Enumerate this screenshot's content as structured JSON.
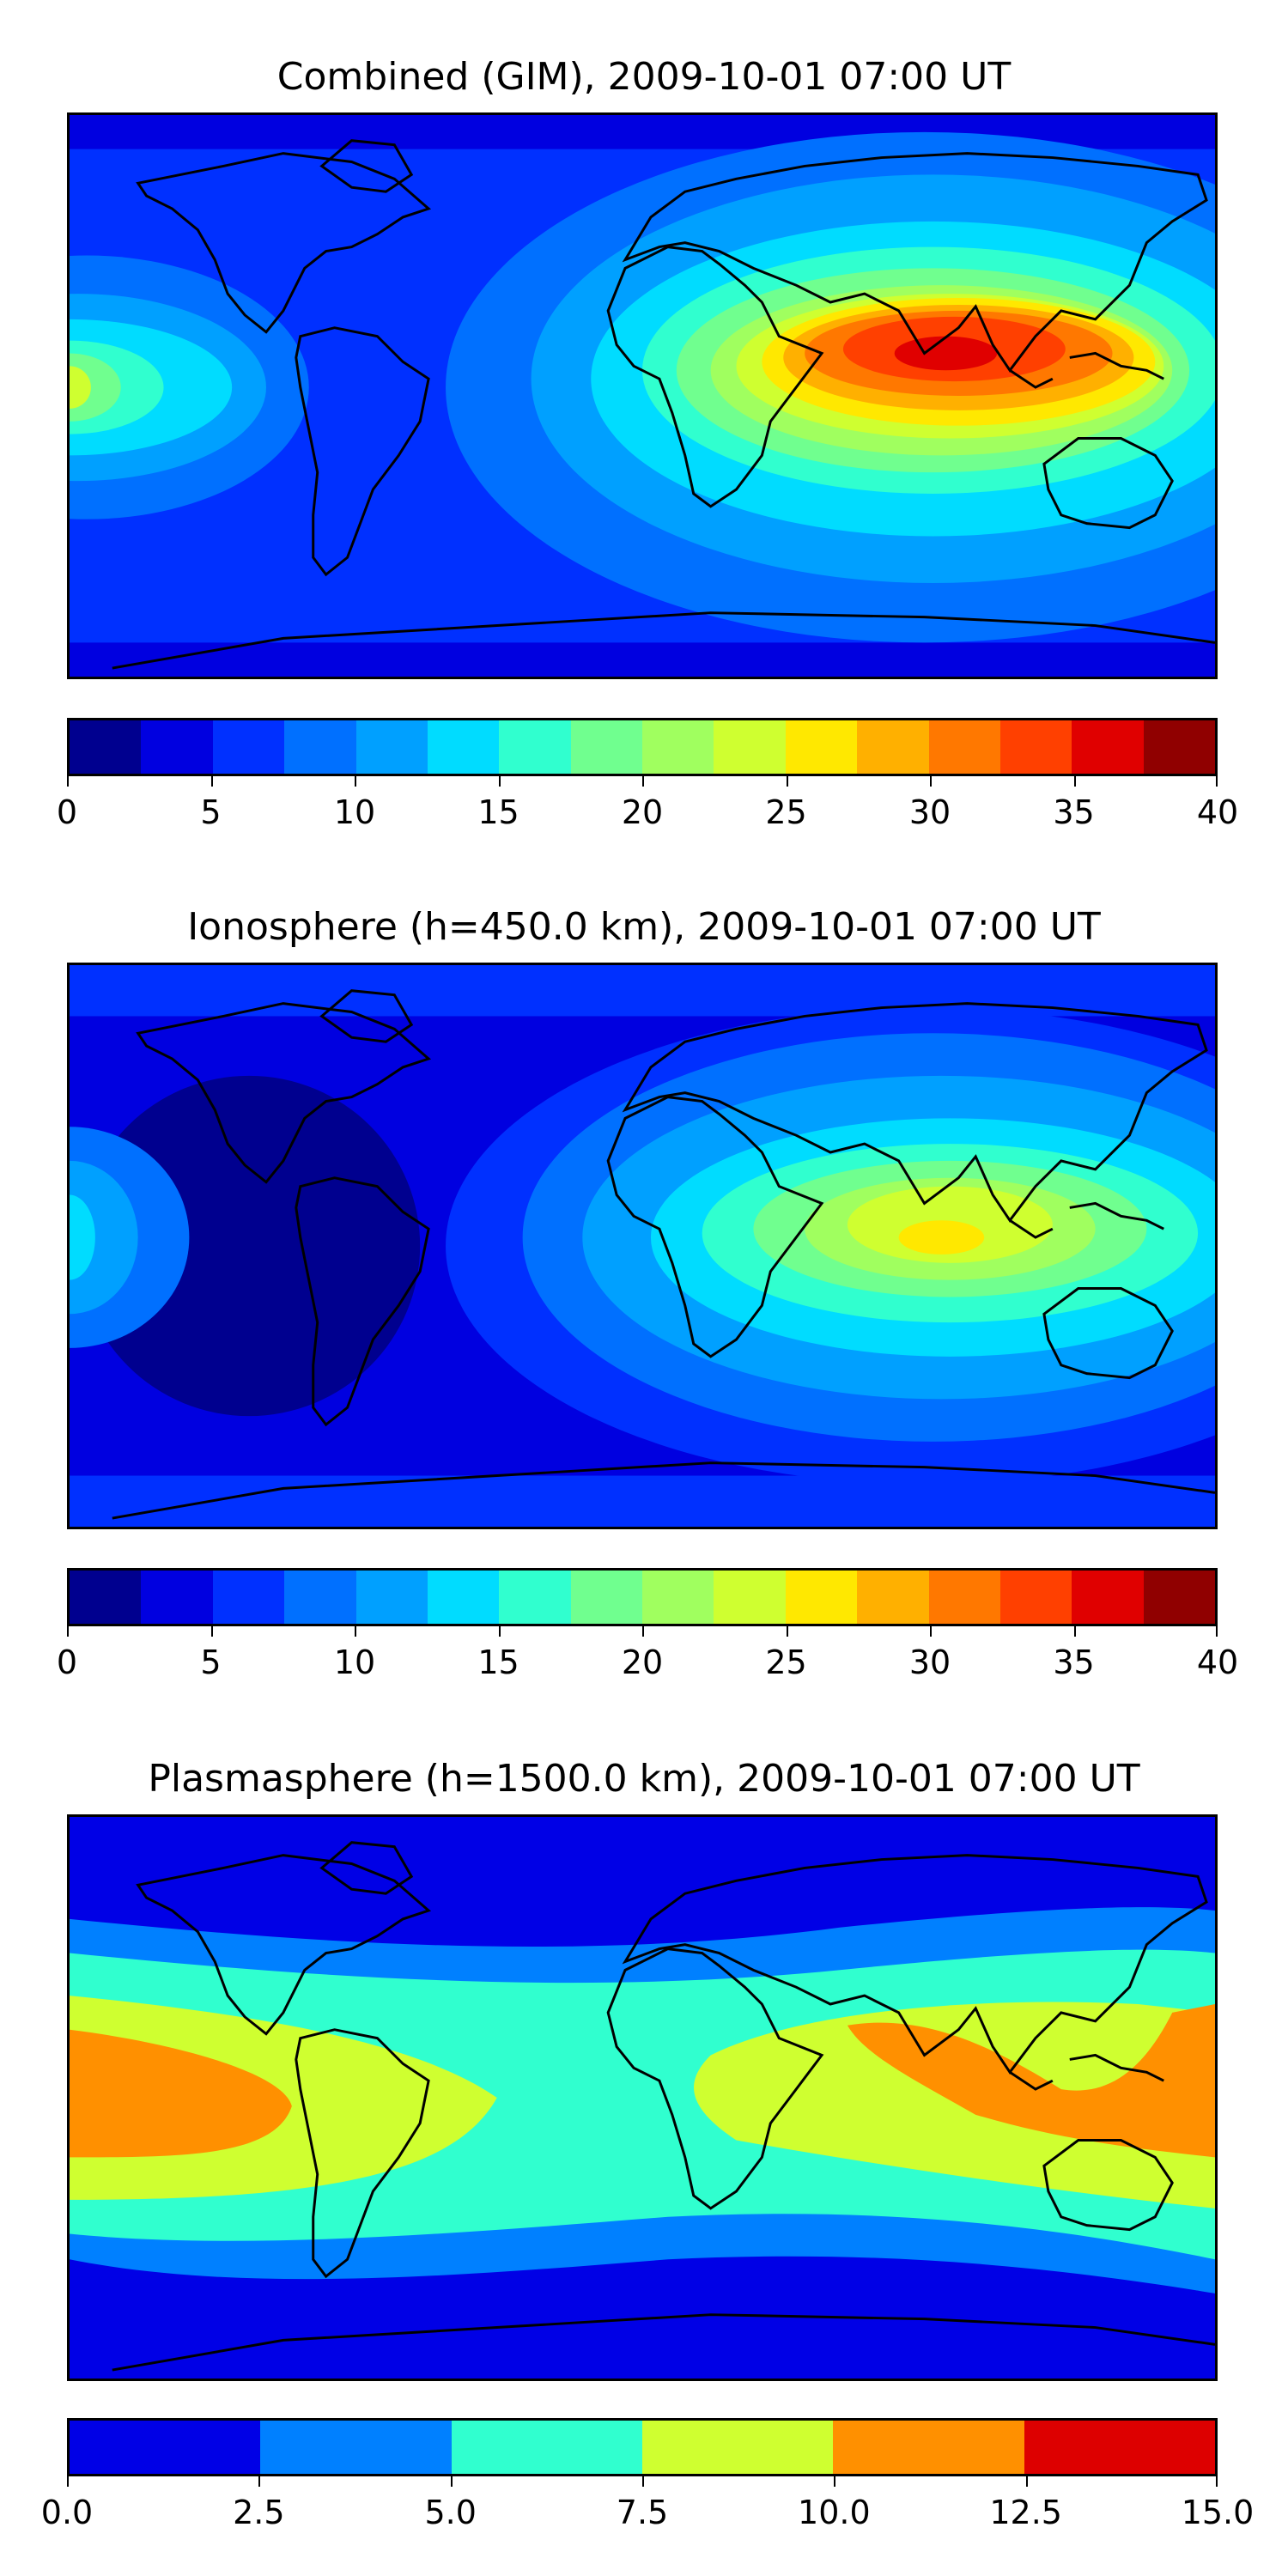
{
  "chart_data": [
    {
      "type": "heatmap",
      "title": "Combined (GIM), 2009-10-01 07:00 UT",
      "colorbar": {
        "levels": [
          0,
          2.5,
          5,
          7.5,
          10,
          12.5,
          15,
          17.5,
          20,
          22.5,
          25,
          27.5,
          30,
          32.5,
          35,
          37.5,
          40
        ],
        "colors": [
          "#00008f",
          "#0000e0",
          "#0030ff",
          "#0070ff",
          "#00a0ff",
          "#00dcff",
          "#30ffcf",
          "#70ff8f",
          "#a0ff5f",
          "#cfff30",
          "#ffe800",
          "#ffb000",
          "#ff7800",
          "#ff4000",
          "#e00000",
          "#900000"
        ],
        "tick_values": [
          0,
          5,
          10,
          15,
          20,
          25,
          30,
          35,
          40
        ],
        "tick_labels": [
          "0",
          "5",
          "10",
          "15",
          "20",
          "25",
          "30",
          "35",
          "40"
        ]
      }
    },
    {
      "type": "heatmap",
      "title": "Ionosphere  (h=450.0 km), 2009-10-01 07:00 UT",
      "colorbar": {
        "levels": [
          0,
          2.5,
          5,
          7.5,
          10,
          12.5,
          15,
          17.5,
          20,
          22.5,
          25,
          27.5,
          30,
          32.5,
          35,
          37.5,
          40
        ],
        "colors": [
          "#00008f",
          "#0000e0",
          "#0030ff",
          "#0070ff",
          "#00a0ff",
          "#00dcff",
          "#30ffcf",
          "#70ff8f",
          "#a0ff5f",
          "#cfff30",
          "#ffe800",
          "#ffb000",
          "#ff7800",
          "#ff4000",
          "#e00000",
          "#900000"
        ],
        "tick_values": [
          0,
          5,
          10,
          15,
          20,
          25,
          30,
          35,
          40
        ],
        "tick_labels": [
          "0",
          "5",
          "10",
          "15",
          "20",
          "25",
          "30",
          "35",
          "40"
        ]
      }
    },
    {
      "type": "heatmap",
      "title": "Plasmasphere (h=1500.0 km), 2009-10-01 07:00 UT",
      "colorbar": {
        "levels": [
          0,
          2.5,
          5,
          7.5,
          10,
          12.5,
          15
        ],
        "colors": [
          "#0000e6",
          "#0080ff",
          "#30ffcf",
          "#cfff30",
          "#ff9000",
          "#dd0000"
        ],
        "tick_values": [
          0,
          2.5,
          5,
          7.5,
          10,
          12.5,
          15
        ],
        "tick_labels": [
          "0.0",
          "2.5",
          "5.0",
          "7.5",
          "10.0",
          "12.5",
          "15.0"
        ]
      }
    }
  ]
}
